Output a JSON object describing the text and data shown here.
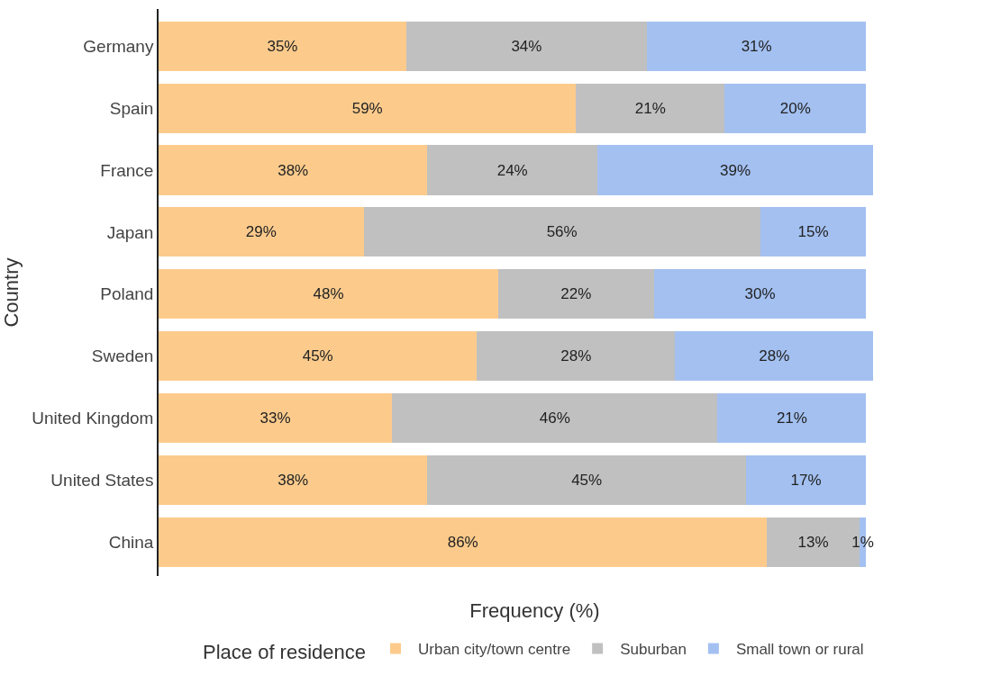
{
  "chart_data": {
    "type": "bar",
    "orientation": "horizontal",
    "stacked": true,
    "xlabel": "Frequency (%)",
    "ylabel": "Country",
    "legend_title": "Place of residence",
    "legend": "bottom",
    "tick_labels": "y",
    "categories": [
      "Germany",
      "Spain",
      "France",
      "Japan",
      "Poland",
      "Sweden",
      "United Kingdom",
      "United States",
      "China"
    ],
    "series": [
      {
        "name": "Urban city/town centre",
        "color": "#fccb8c",
        "values": [
          35,
          59,
          38,
          29,
          48,
          45,
          33,
          38,
          86
        ],
        "value_labels": [
          "35%",
          "59%",
          "38%",
          "29%",
          "48%",
          "45%",
          "33%",
          "38%",
          "86%"
        ]
      },
      {
        "name": "Suburban",
        "color": "#c0c0c0",
        "values": [
          34,
          21,
          24,
          56,
          22,
          28,
          46,
          45,
          13
        ],
        "value_labels": [
          "34%",
          "21%",
          "24%",
          "56%",
          "22%",
          "28%",
          "46%",
          "45%",
          "13%"
        ]
      },
      {
        "name": "Small town or rural",
        "color": "#a3c0f1",
        "values": [
          31,
          20,
          39,
          15,
          30,
          28,
          21,
          17,
          1
        ],
        "value_labels": [
          "31%",
          "20%",
          "39%",
          "15%",
          "30%",
          "28%",
          "21%",
          "17%",
          "1%"
        ]
      }
    ]
  }
}
